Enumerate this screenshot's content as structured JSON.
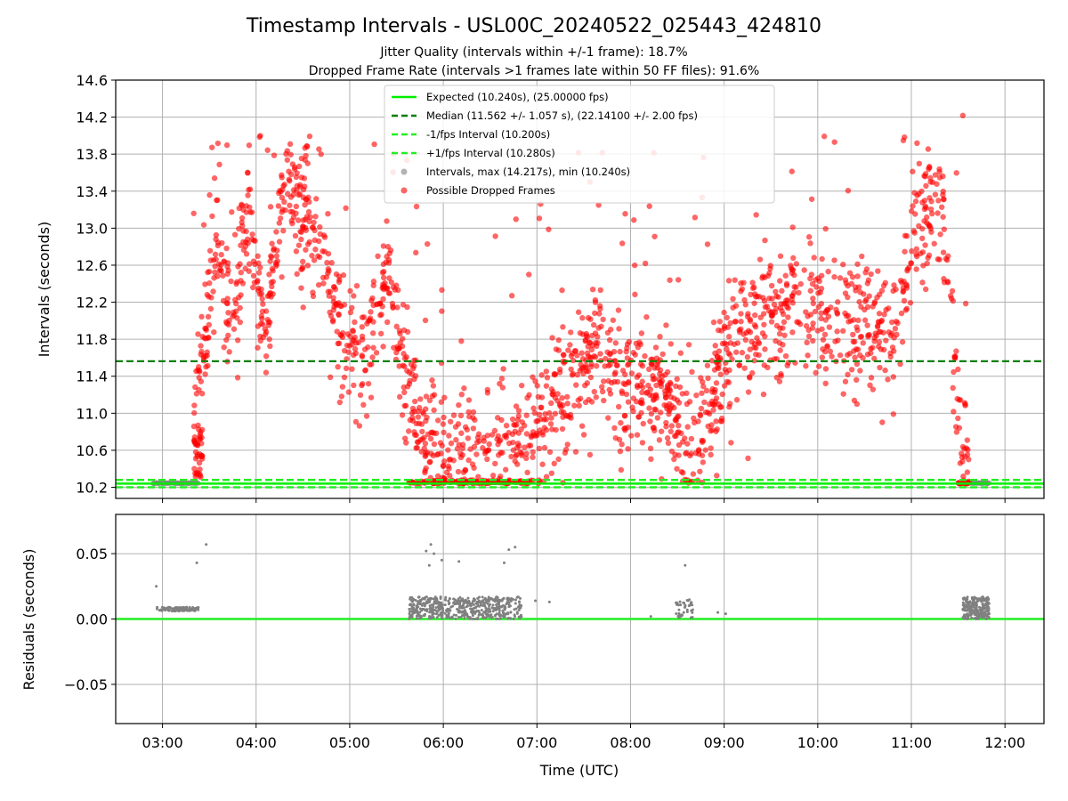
{
  "figure": {
    "title": "Timestamp Intervals - USL00C_20240522_025443_424810",
    "subtitle_1": "Jitter Quality (intervals within +/-1 frame): 18.7%",
    "subtitle_2": "Dropped Frame Rate (intervals >1 frames late within 50 FF files): 91.6%"
  },
  "colors": {
    "expected": "#00ee00",
    "median": "#008000",
    "interval_bounds": "#22ee22",
    "intervals": "#808080",
    "dropped": "#ff0000",
    "residual_zero": "#22ee22",
    "grid": "#b0b0b0"
  },
  "chart_data": [
    {
      "type": "scatter",
      "panel": "top",
      "ylabel": "Intervals (seconds)",
      "ylim": [
        10.08,
        14.6
      ],
      "y_ticks": [
        "10.2",
        "10.6",
        "11.0",
        "11.4",
        "11.8",
        "12.2",
        "12.6",
        "13.0",
        "13.4",
        "13.8",
        "14.2",
        "14.6"
      ],
      "grid": true,
      "legend_position": "upper center",
      "reference_lines": {
        "expected": 10.24,
        "median": 11.562,
        "minus_interval": 10.2,
        "plus_interval": 10.28
      },
      "legend": [
        "Expected (10.240s), (25.00000 fps)",
        "Median (11.562 +/- 1.057 s), (22.14100 +/- 2.00 fps)",
        "-1/fps Interval (10.200s)",
        "+1/fps Interval (10.280s)",
        "Intervals, max (14.217s), min (10.240s)",
        "Possible Dropped Frames"
      ],
      "series": [
        {
          "name": "Intervals",
          "x_range": [
            "02:54",
            "11:50"
          ],
          "y_min": 10.24,
          "y_max": 14.217
        },
        {
          "name": "Possible Dropped Frames",
          "trend": [
            [
              "03:20",
              10.6
            ],
            [
              "03:35",
              13.0
            ],
            [
              "03:45",
              11.9
            ],
            [
              "03:55",
              13.2
            ],
            [
              "04:05",
              11.9
            ],
            [
              "04:20",
              13.5
            ],
            [
              "04:40",
              12.9
            ],
            [
              "04:55",
              11.9
            ],
            [
              "05:10",
              11.6
            ],
            [
              "05:25",
              12.6
            ],
            [
              "05:35",
              11.4
            ],
            [
              "05:45",
              10.8
            ],
            [
              "06:00",
              10.5
            ],
            [
              "06:20",
              10.6
            ],
            [
              "06:40",
              10.7
            ],
            [
              "06:55",
              10.7
            ],
            [
              "07:10",
              11.0
            ],
            [
              "07:25",
              11.4
            ],
            [
              "07:40",
              11.8
            ],
            [
              "07:55",
              11.2
            ],
            [
              "08:10",
              11.4
            ],
            [
              "08:25",
              11.0
            ],
            [
              "08:40",
              10.6
            ],
            [
              "08:55",
              11.3
            ],
            [
              "09:10",
              11.9
            ],
            [
              "09:30",
              12.0
            ],
            [
              "09:45",
              12.2
            ],
            [
              "10:00",
              12.1
            ],
            [
              "10:15",
              12.0
            ],
            [
              "10:35",
              12.0
            ],
            [
              "10:50",
              11.8
            ],
            [
              "11:05",
              13.1
            ],
            [
              "11:20",
              13.3
            ],
            [
              "11:30",
              11.0
            ],
            [
              "11:40",
              10.24
            ]
          ]
        }
      ]
    },
    {
      "type": "scatter",
      "panel": "bottom",
      "xlabel": "Time (UTC)",
      "ylabel": "Residuals (seconds)",
      "ylim": [
        -0.08,
        0.08
      ],
      "y_ticks": [
        "−0.05",
        "0.00",
        "0.05"
      ],
      "y_tick_values": [
        -0.05,
        0.0,
        0.05
      ],
      "x_ticks": [
        "03:00",
        "04:00",
        "05:00",
        "06:00",
        "07:00",
        "08:00",
        "09:00",
        "10:00",
        "11:00",
        "12:00"
      ],
      "xlim": [
        "02:30",
        "12:25"
      ],
      "grid": true,
      "reference_lines": {
        "zero": 0.0
      },
      "series": [
        {
          "name": "Residuals",
          "clusters": [
            {
              "x_range": [
                "02:56",
                "03:23"
              ],
              "y_range": [
                0.006,
                0.009
              ]
            },
            {
              "x_range": [
                "05:38",
                "06:50"
              ],
              "y_range": [
                0.0,
                0.017
              ]
            },
            {
              "x_range": [
                "08:28",
                "08:40"
              ],
              "y_range": [
                0.0,
                0.015
              ]
            },
            {
              "x_range": [
                "11:33",
                "11:50"
              ],
              "y_range": [
                0.0,
                0.017
              ]
            }
          ],
          "outliers": [
            [
              "02:56",
              0.025
            ],
            [
              "03:22",
              0.043
            ],
            [
              "03:28",
              0.057
            ],
            [
              "05:49",
              0.052
            ],
            [
              "05:52",
              0.057
            ],
            [
              "05:54",
              0.05
            ],
            [
              "05:51",
              0.041
            ],
            [
              "05:59",
              0.045
            ],
            [
              "06:10",
              0.044
            ],
            [
              "06:39",
              0.043
            ],
            [
              "06:42",
              0.053
            ],
            [
              "06:46",
              0.055
            ],
            [
              "08:35",
              0.041
            ],
            [
              "06:59",
              0.014
            ],
            [
              "07:08",
              0.013
            ],
            [
              "08:13",
              0.002
            ],
            [
              "08:56",
              0.005
            ],
            [
              "09:01",
              0.004
            ]
          ]
        }
      ]
    }
  ]
}
